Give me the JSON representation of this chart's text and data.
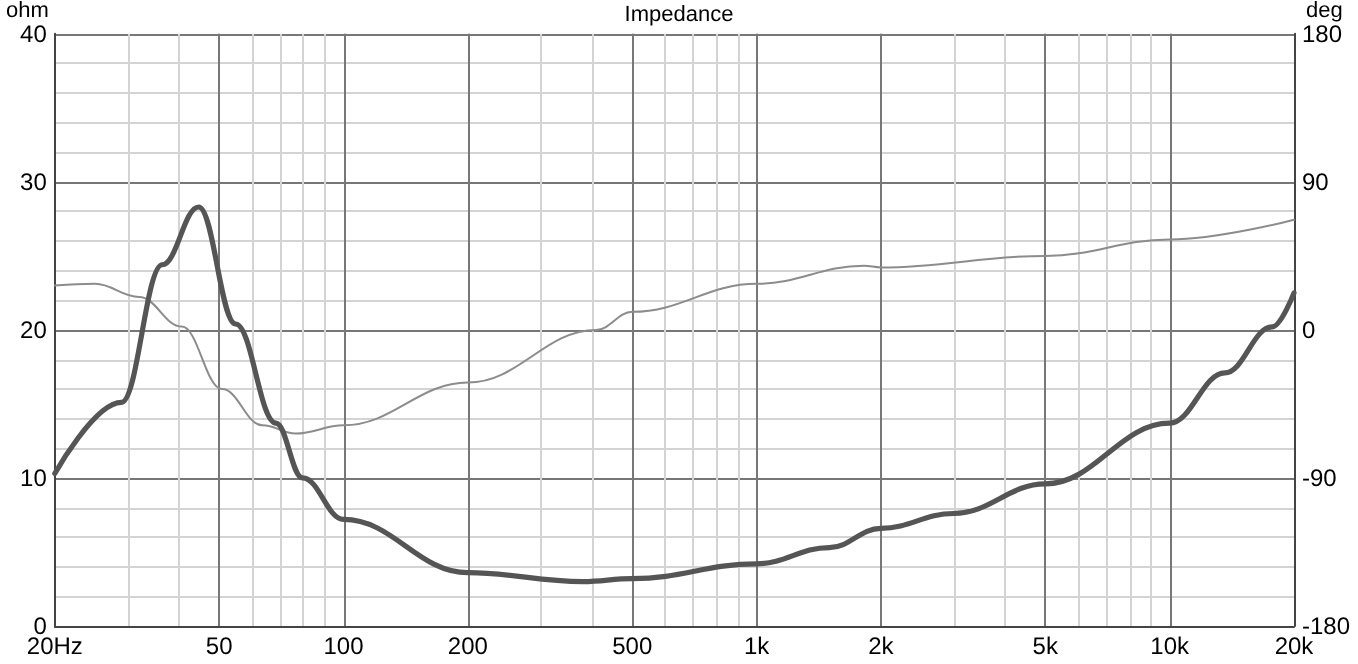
{
  "chart_data": {
    "type": "line",
    "title": "Impedance",
    "ylabel": "ohm",
    "y2label": "deg",
    "xlim": [
      20,
      20000
    ],
    "log": "x",
    "xticks": [
      {
        "value": 20,
        "label": "20Hz"
      },
      {
        "value": 30,
        "label": null
      },
      {
        "value": 40,
        "label": null
      },
      50,
      {
        "value": 60,
        "label": null
      },
      {
        "value": 70,
        "label": null
      },
      {
        "value": 80,
        "label": null
      },
      {
        "value": 90,
        "label": null
      },
      100,
      200,
      {
        "value": 300,
        "label": null
      },
      {
        "value": 400,
        "label": null
      },
      500,
      {
        "value": 600,
        "label": null
      },
      {
        "value": 700,
        "label": null
      },
      {
        "value": 800,
        "label": null
      },
      {
        "value": 900,
        "label": null
      },
      {
        "value": 1000,
        "label": "1k"
      },
      {
        "value": 2000,
        "label": "2k"
      },
      {
        "value": 3000,
        "label": null
      },
      {
        "value": 4000,
        "label": null
      },
      {
        "value": 5000,
        "label": "5k"
      },
      {
        "value": 6000,
        "label": null
      },
      {
        "value": 7000,
        "label": null
      },
      {
        "value": 8000,
        "label": null
      },
      {
        "value": 9000,
        "label": null
      },
      {
        "value": 10000,
        "label": "10k"
      },
      {
        "value": 20000,
        "label": "20k"
      }
    ],
    "ylim": [
      0,
      40
    ],
    "yticks": [
      0,
      {
        "value": 2,
        "label": null
      },
      {
        "value": 4,
        "label": null
      },
      {
        "value": 6,
        "label": null
      },
      {
        "value": 8,
        "label": null
      },
      10,
      {
        "value": 12,
        "label": null
      },
      {
        "value": 14,
        "label": null
      },
      {
        "value": 16,
        "label": null
      },
      {
        "value": 18,
        "label": null
      },
      20,
      {
        "value": 22,
        "label": null
      },
      {
        "value": 24,
        "label": null
      },
      {
        "value": 26,
        "label": null
      },
      {
        "value": 28,
        "label": null
      },
      30,
      {
        "value": 32,
        "label": null
      },
      {
        "value": 34,
        "label": null
      },
      {
        "value": 36,
        "label": null
      },
      {
        "value": 38,
        "label": null
      },
      40
    ],
    "y2lim": [
      -180,
      180
    ],
    "y2ticks": [
      -180,
      -90,
      0,
      90,
      180
    ],
    "grid": true,
    "marker": "none",
    "series": [
      {
        "color": "#555555",
        "x": [
          20,
          29,
          36.4,
          44.6,
          54.8,
          68.6,
          79.6,
          100,
          200,
          380,
          500,
          1000,
          1500,
          2000,
          3000,
          5000,
          10000,
          13600,
          17700,
          20000
        ],
        "values": [
          10.3,
          15.1,
          24.4,
          28.3,
          20.4,
          13.7,
          10.0,
          7.2,
          3.6,
          3.0,
          3.2,
          4.2,
          5.3,
          6.6,
          7.6,
          9.6,
          13.7,
          17.1,
          20.2,
          22.5
        ]
      },
      {
        "color": "#8c8c8c",
        "axis": "y2",
        "x": [
          20,
          25,
          32,
          40.6,
          50.8,
          63.6,
          76.6,
          100,
          200,
          409,
          500,
          1000,
          1820,
          2000,
          5000,
          10000,
          20000
        ],
        "values": [
          27,
          28,
          20,
          2,
          -36,
          -58,
          -63,
          -58,
          -32,
          0,
          11,
          28,
          39,
          38,
          45,
          55,
          67
        ]
      }
    ]
  }
}
